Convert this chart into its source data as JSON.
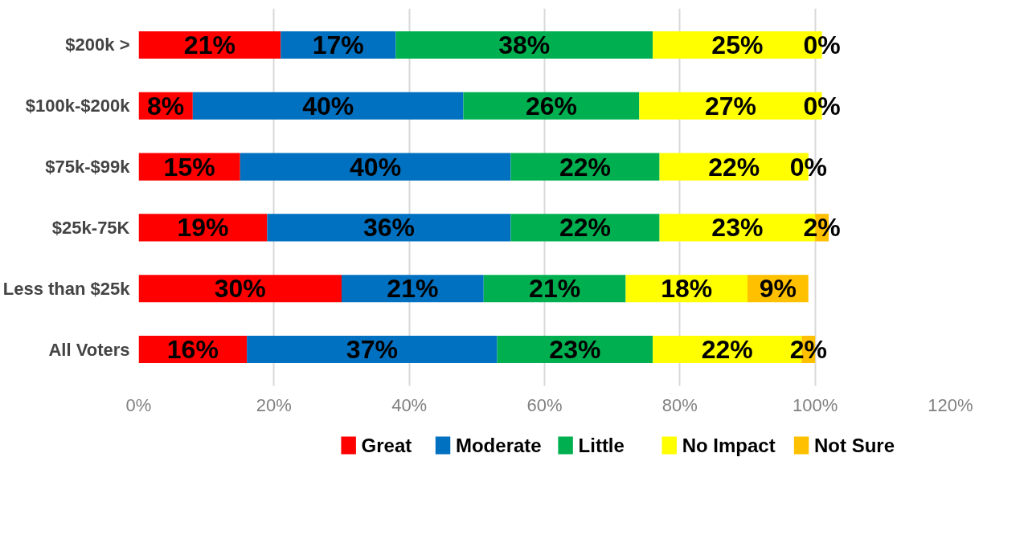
{
  "chart_data": {
    "type": "bar",
    "orientation": "horizontal",
    "stacked": true,
    "categories": [
      "$200k >",
      "$100k-$200k",
      "$75k-$99k",
      "$25k-75K",
      "Less than $25k",
      "All Voters"
    ],
    "series": [
      {
        "name": "Great",
        "color": "#ff0000",
        "values": [
          21,
          8,
          15,
          19,
          30,
          16
        ],
        "value_labels": [
          "21%",
          "8%",
          "15%",
          "19%",
          "30%",
          "16%"
        ]
      },
      {
        "name": "Moderate",
        "color": "#0070c0",
        "values": [
          17,
          40,
          40,
          36,
          21,
          37
        ],
        "value_labels": [
          "17%",
          "40%",
          "40%",
          "36%",
          "21%",
          "37%"
        ]
      },
      {
        "name": "Little",
        "color": "#00b050",
        "values": [
          38,
          26,
          22,
          22,
          21,
          23
        ],
        "value_labels": [
          "38%",
          "26%",
          "22%",
          "22%",
          "21%",
          "23%"
        ]
      },
      {
        "name": "No Impact",
        "color": "#ffff00",
        "values": [
          25,
          27,
          22,
          23,
          18,
          22
        ],
        "value_labels": [
          "25%",
          "27%",
          "22%",
          "23%",
          "18%",
          "22%"
        ]
      },
      {
        "name": "Not Sure",
        "color": "#ffc000",
        "values": [
          0,
          0,
          0,
          2,
          9,
          2
        ],
        "value_labels": [
          "0%",
          "0%",
          "0%",
          "2%",
          "9%",
          "2%"
        ]
      }
    ],
    "xlim": [
      0,
      120
    ],
    "xticks": [
      {
        "value": 0,
        "label": "0%"
      },
      {
        "value": 20,
        "label": "20%"
      },
      {
        "value": 40,
        "label": "40%"
      },
      {
        "value": 60,
        "label": "60%"
      },
      {
        "value": 80,
        "label": "80%"
      },
      {
        "value": 100,
        "label": "100%"
      },
      {
        "value": 120,
        "label": "120%"
      }
    ],
    "grid": "x",
    "legend": "bottom"
  }
}
